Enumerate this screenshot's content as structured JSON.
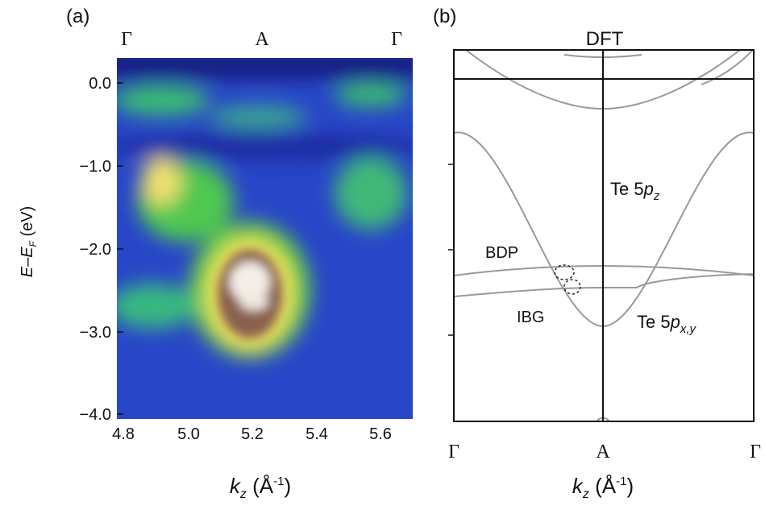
{
  "panels": [
    {
      "label": "(a)",
      "top_labels": [
        "Γ",
        "A",
        "Γ"
      ],
      "yticks": [
        "0.0",
        "−1.0",
        "−2.0",
        "−3.0",
        "−4.0"
      ],
      "xticks": [
        "4.8",
        "5.0",
        "5.2",
        "5.4",
        "5.6"
      ],
      "ylabel": {
        "e1": "E",
        "dash": "–",
        "e2": "E",
        "sub": "F",
        "unit": " (eV)"
      },
      "xlabel": {
        "k": "k",
        "sub": "z",
        "unit": " (Å",
        "sup": "-1",
        "close": ")"
      }
    },
    {
      "label": "(b)",
      "title": "DFT",
      "bottom_labels": [
        "Γ",
        "A",
        "Γ"
      ],
      "xlabel": {
        "k": "k",
        "sub": "z",
        "unit": " (Å",
        "sup": "-1",
        "close": ")"
      },
      "annotations": {
        "tepz": {
          "main": "Te 5",
          "p": "p",
          "sub": "z"
        },
        "bdp": "BDP",
        "ibg": "IBG",
        "tepxy": {
          "main": "Te 5",
          "p": "p",
          "sub": "x,y"
        }
      }
    }
  ]
}
